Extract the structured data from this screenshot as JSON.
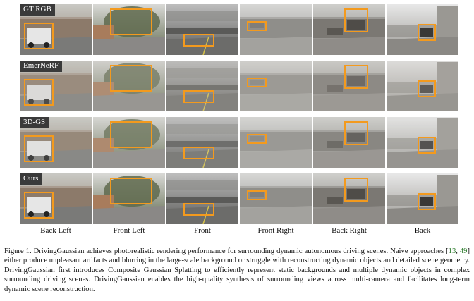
{
  "row_labels": [
    "GT RGB",
    "EmerNeRF",
    "3D-GS",
    "Ours"
  ],
  "column_labels": [
    "Back Left",
    "Front Left",
    "Front",
    "Front Right",
    "Back Right",
    "Back"
  ],
  "caption": {
    "p1": "Figure 1.  DrivingGaussian achieves photorealistic rendering performance for surrounding dynamic autonomous driving scenes. Naive approaches [",
    "ref1": "13",
    "sep": ", ",
    "ref2": "49",
    "p2": "] either produce unpleasant artifacts and blurring in the large-scale background or struggle with reconstructing dynamic objects and detailed scene geometry. DrivingGaussian first introduces Composite Gaussian Splatting to efficiently represent static backgrounds and multiple dynamic objects in complex surrounding driving scenes. DrivingGaussian enables the high-quality synthesis of surrounding views across multi-camera and facilitates long-term dynamic scene reconstruction."
  },
  "colors": {
    "highlight_box": "#f39a1e",
    "label_bg": "#3a3a3a"
  }
}
